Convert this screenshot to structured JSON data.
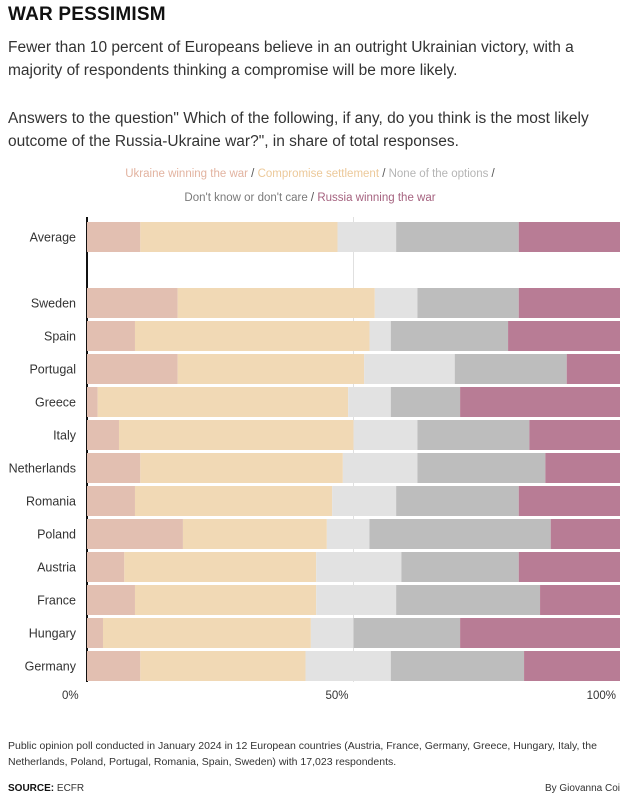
{
  "title": "WAR PESSIMISM",
  "subtitle": "Fewer than 10 percent of Europeans believe in an outright Ukrainian victory, with a majority of respondents thinking a compromise will be more likely.",
  "question": "Answers to the question\" Which of the following, if any, do you think is the most likely outcome of the Russia-Ukraine war?\", in share of total responses.",
  "legend": {
    "ukraine": "Ukraine winning the war",
    "compromise": "Compromise settlement",
    "none": "None of the options",
    "dontknow": "Don't know or don't care",
    "russia": "Russia winning the war",
    "separator": " / "
  },
  "colors": {
    "ukraine": "#e2bfb1",
    "compromise": "#f1d9b5",
    "none": "#e2e2e2",
    "dontknow": "#bdbdbd",
    "russia": "#b87c95"
  },
  "chart_data": {
    "type": "bar",
    "orientation": "horizontal",
    "stacked": true,
    "categories": [
      "Average",
      "Sweden",
      "Spain",
      "Portugal",
      "Greece",
      "Italy",
      "Netherlands",
      "Romania",
      "Poland",
      "Austria",
      "France",
      "Hungary",
      "Germany"
    ],
    "series": [
      {
        "name": "Ukraine winning the war",
        "values": [
          10,
          17,
          9,
          17,
          2,
          6,
          10,
          9,
          18,
          7,
          9,
          3,
          10
        ]
      },
      {
        "name": "Compromise settlement",
        "values": [
          37,
          37,
          44,
          35,
          47,
          44,
          38,
          37,
          27,
          36,
          34,
          39,
          31
        ]
      },
      {
        "name": "None of the options",
        "values": [
          11,
          8,
          4,
          17,
          8,
          12,
          14,
          12,
          8,
          16,
          15,
          8,
          16
        ]
      },
      {
        "name": "Don't know or don't care",
        "values": [
          23,
          19,
          22,
          21,
          13,
          21,
          24,
          23,
          34,
          22,
          27,
          20,
          25
        ]
      },
      {
        "name": "Russia winning the war",
        "values": [
          19,
          19,
          21,
          10,
          30,
          17,
          14,
          19,
          13,
          19,
          15,
          30,
          18
        ]
      }
    ],
    "xlim": [
      0,
      100
    ],
    "xticks": [
      "0%",
      "50%",
      "100%"
    ],
    "grid": true,
    "legend_position": "top"
  },
  "notes": "Public opinion poll conducted in January 2024 in 12 European countries (Austria, France, Germany, Greece, Hungary, Italy, the Netherlands, Poland, Portugal, Romania, Spain, Sweden) with 17,023 respondents.",
  "source_label": "SOURCE:",
  "source": "ECFR",
  "credit": "By Giovanna Coi"
}
